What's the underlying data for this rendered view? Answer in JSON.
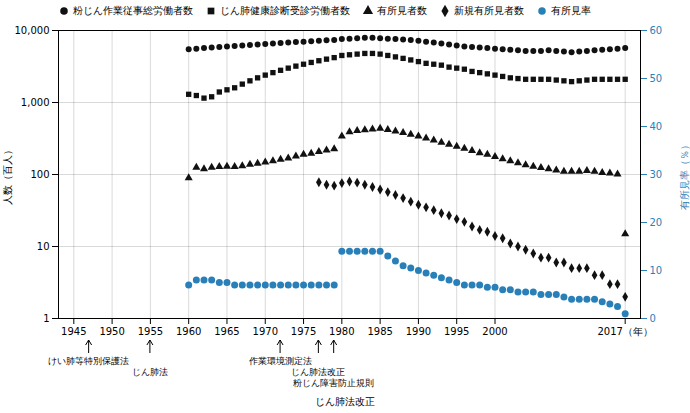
{
  "chart_data": {
    "type": "scatter",
    "log": "y",
    "xlim": [
      1943,
      2019
    ],
    "xticks": [
      1945,
      1950,
      1955,
      1960,
      1965,
      1970,
      1975,
      1980,
      1985,
      1990,
      1995,
      2000,
      {
        "value": 2017,
        "label": "2017（年）"
      }
    ],
    "ylim": [
      1,
      10000
    ],
    "yticks": [
      1,
      10,
      100,
      {
        "value": 1000,
        "label": "1,000"
      },
      {
        "value": 10000,
        "label": "10,000"
      }
    ],
    "y2lim": [
      0,
      60
    ],
    "y2ticks": [
      0,
      10,
      20,
      30,
      40,
      50,
      60
    ],
    "ylabel": "人数（百人）",
    "y2label": "有所見率（％）",
    "grid": true,
    "legend": "upper left",
    "series": [
      {
        "name": "粉じん作業従事総労働者数",
        "color": "#111111",
        "marker": "circle",
        "x": [
          1960,
          1961,
          1962,
          1963,
          1964,
          1965,
          1966,
          1967,
          1968,
          1969,
          1970,
          1971,
          1972,
          1973,
          1974,
          1975,
          1976,
          1977,
          1978,
          1979,
          1980,
          1981,
          1982,
          1983,
          1984,
          1985,
          1986,
          1987,
          1988,
          1989,
          1990,
          1991,
          1992,
          1993,
          1994,
          1995,
          1996,
          1997,
          1998,
          1999,
          2000,
          2001,
          2002,
          2003,
          2004,
          2005,
          2006,
          2007,
          2008,
          2009,
          2010,
          2011,
          2012,
          2013,
          2014,
          2015,
          2016,
          2017
        ],
        "values": [
          5500,
          5600,
          5700,
          5800,
          5900,
          6000,
          6100,
          6200,
          6300,
          6400,
          6500,
          6600,
          6700,
          6800,
          6900,
          7000,
          7100,
          7200,
          7300,
          7400,
          7600,
          7700,
          7800,
          7900,
          7900,
          7800,
          7700,
          7600,
          7500,
          7400,
          7200,
          7000,
          6800,
          6600,
          6400,
          6200,
          6000,
          5900,
          5800,
          5700,
          5600,
          5500,
          5400,
          5300,
          5200,
          5200,
          5200,
          5300,
          5200,
          5100,
          5000,
          5100,
          5200,
          5300,
          5400,
          5500,
          5600,
          5700
        ]
      },
      {
        "name": "じん肺健康診断受診労働者数",
        "color": "#111111",
        "marker": "square",
        "x": [
          1960,
          1961,
          1962,
          1963,
          1964,
          1965,
          1966,
          1967,
          1968,
          1969,
          1970,
          1971,
          1972,
          1973,
          1974,
          1975,
          1976,
          1977,
          1978,
          1979,
          1980,
          1981,
          1982,
          1983,
          1984,
          1985,
          1986,
          1987,
          1988,
          1989,
          1990,
          1991,
          1992,
          1993,
          1994,
          1995,
          1996,
          1997,
          1998,
          1999,
          2000,
          2001,
          2002,
          2003,
          2004,
          2005,
          2006,
          2007,
          2008,
          2009,
          2010,
          2011,
          2012,
          2013,
          2014,
          2015,
          2016,
          2017
        ],
        "values": [
          1300,
          1250,
          1150,
          1200,
          1400,
          1500,
          1600,
          1800,
          2000,
          2200,
          2400,
          2600,
          2800,
          3000,
          3200,
          3400,
          3600,
          3800,
          4000,
          4200,
          4500,
          4600,
          4700,
          4800,
          4800,
          4700,
          4500,
          4300,
          4100,
          3900,
          3700,
          3500,
          3400,
          3300,
          3100,
          3000,
          2900,
          2700,
          2600,
          2500,
          2400,
          2300,
          2200,
          2150,
          2100,
          2100,
          2100,
          2100,
          2050,
          2000,
          1950,
          2000,
          2050,
          2100,
          2100,
          2100,
          2100,
          2100
        ]
      },
      {
        "name": "有所見者数",
        "color": "#111111",
        "marker": "triangle",
        "x": [
          1960,
          1961,
          1962,
          1963,
          1964,
          1965,
          1966,
          1967,
          1968,
          1969,
          1970,
          1971,
          1972,
          1973,
          1974,
          1975,
          1976,
          1977,
          1978,
          1979,
          1980,
          1981,
          1982,
          1983,
          1984,
          1985,
          1986,
          1987,
          1988,
          1989,
          1990,
          1991,
          1992,
          1993,
          1994,
          1995,
          1996,
          1997,
          1998,
          1999,
          2000,
          2001,
          2002,
          2003,
          2004,
          2005,
          2006,
          2007,
          2008,
          2009,
          2010,
          2011,
          2012,
          2013,
          2014,
          2015,
          2016,
          2017
        ],
        "values": [
          90,
          125,
          120,
          125,
          128,
          130,
          128,
          132,
          138,
          142,
          148,
          155,
          162,
          168,
          180,
          190,
          197,
          208,
          218,
          226,
          340,
          390,
          405,
          415,
          425,
          435,
          420,
          400,
          380,
          360,
          340,
          320,
          300,
          280,
          262,
          245,
          230,
          215,
          200,
          190,
          177,
          165,
          155,
          145,
          136,
          130,
          124,
          120,
          115,
          110,
          110,
          110,
          113,
          110,
          106,
          104,
          101,
          15
        ]
      },
      {
        "name": "新規有所見者数",
        "color": "#111111",
        "marker": "diamond",
        "x": [
          1977,
          1978,
          1979,
          1980,
          1981,
          1982,
          1983,
          1984,
          1985,
          1986,
          1987,
          1988,
          1989,
          1990,
          1991,
          1992,
          1993,
          1994,
          1995,
          1996,
          1997,
          1998,
          1999,
          2000,
          2001,
          2002,
          2003,
          2004,
          2005,
          2006,
          2007,
          2008,
          2009,
          2010,
          2011,
          2012,
          2013,
          2014,
          2015,
          2016,
          2017
        ],
        "values": [
          78,
          72,
          70,
          76,
          80,
          77,
          72,
          67,
          62,
          57,
          52,
          47,
          42,
          38,
          35,
          32,
          29,
          27,
          24,
          22,
          19,
          17,
          16,
          14,
          13,
          11,
          10,
          9,
          8,
          7,
          7,
          6,
          6,
          5,
          5,
          5,
          4,
          4,
          3,
          3,
          2
        ]
      },
      {
        "name": "有所見率",
        "color": "#2980b9",
        "marker": "circle",
        "axis": "y2",
        "x": [
          1960,
          1961,
          1962,
          1963,
          1964,
          1965,
          1966,
          1967,
          1968,
          1969,
          1970,
          1971,
          1972,
          1973,
          1974,
          1975,
          1976,
          1977,
          1978,
          1979,
          1980,
          1981,
          1982,
          1983,
          1984,
          1985,
          1986,
          1987,
          1988,
          1989,
          1990,
          1991,
          1992,
          1993,
          1994,
          1995,
          1996,
          1997,
          1998,
          1999,
          2000,
          2001,
          2002,
          2003,
          2004,
          2005,
          2006,
          2007,
          2008,
          2009,
          2010,
          2011,
          2012,
          2013,
          2014,
          2015,
          2016,
          2017
        ],
        "values": [
          7,
          8,
          8,
          8,
          7.5,
          7.5,
          7,
          7,
          7,
          7,
          7,
          7,
          7,
          7,
          7,
          7,
          7,
          7,
          7,
          7,
          14,
          14,
          14,
          14,
          14,
          14,
          13,
          12,
          11,
          10.5,
          10,
          9.5,
          9,
          8.5,
          8,
          7.5,
          7,
          7,
          7,
          6.5,
          6.5,
          6,
          6,
          5.5,
          5.5,
          5.5,
          5,
          5,
          5,
          4.5,
          4,
          4,
          4,
          4,
          3.5,
          3,
          2.5,
          1
        ]
      }
    ],
    "annotations": [
      {
        "x": 1947,
        "text": "けい肺等特別保護法"
      },
      {
        "x": 1955,
        "text": "じん肺法"
      },
      {
        "x": 1972,
        "text": "作業環境測定法"
      },
      {
        "x": 1977,
        "text": "じん肺法改正"
      },
      {
        "x": 1979,
        "text": "粉じん障害防止規則"
      }
    ],
    "caption": "じん肺法改正"
  }
}
